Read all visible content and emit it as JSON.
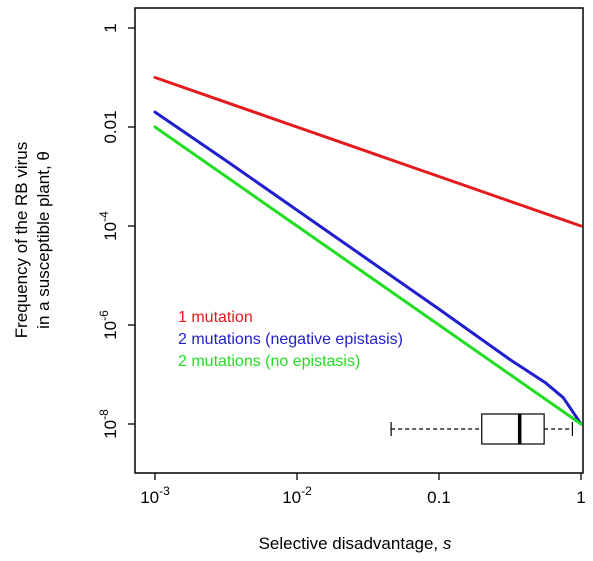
{
  "chart_data": {
    "type": "line",
    "xlabel": "Selective disadvantage, ",
    "xlabel_italic": "s",
    "ylabel_line1": "Frequency of the RB virus",
    "ylabel_line2": "in a susceptible plant, θ",
    "x_scale": "log",
    "y_scale": "log",
    "xlim": [
      0.001,
      1
    ],
    "ylim": [
      1e-09,
      1
    ],
    "x_ticks": [
      {
        "value": 0.001,
        "label_base": "10",
        "label_exp": "-3"
      },
      {
        "value": 0.01,
        "label_base": "10",
        "label_exp": "-2"
      },
      {
        "value": 0.1,
        "label_base": "0.1",
        "label_exp": ""
      },
      {
        "value": 1,
        "label_base": "1",
        "label_exp": ""
      }
    ],
    "y_ticks": [
      {
        "value": 1,
        "label_base": "1",
        "label_exp": ""
      },
      {
        "value": 0.01,
        "label_base": "0.01",
        "label_exp": ""
      },
      {
        "value": 0.0001,
        "label_base": "10",
        "label_exp": "-4"
      },
      {
        "value": 1e-06,
        "label_base": "10",
        "label_exp": "-6"
      },
      {
        "value": 1e-08,
        "label_base": "10",
        "label_exp": "-8"
      }
    ],
    "series": [
      {
        "name": "1 mutation",
        "color": "#e41a1c",
        "x": [
          0.001,
          0.01,
          0.1,
          1
        ],
        "y": [
          0.1,
          0.01,
          0.001,
          0.0001
        ]
      },
      {
        "name": "2 mutations (negative epistasis)",
        "color": "#1f1fd0",
        "x": [
          0.001,
          0.00316,
          0.01,
          0.0316,
          0.1,
          0.316,
          0.562,
          0.75,
          1
        ],
        "y": [
          0.02,
          0.0021,
          0.00021,
          2.1e-05,
          2.1e-06,
          2e-07,
          6.8e-08,
          3.4e-08,
          1e-08
        ]
      },
      {
        "name": "2 mutations (no epistasis)",
        "color": "#22dd22",
        "x": [
          0.001,
          0.01,
          0.1,
          1
        ],
        "y": [
          0.01,
          0.0001,
          1e-06,
          1e-08
        ]
      }
    ],
    "legend": {
      "position": "lower-left",
      "entries": [
        "1 mutation",
        "2 mutations (negative epistasis)",
        "2 mutations (no epistasis)"
      ]
    },
    "boxplot": {
      "orientation": "horizontal",
      "min": 0.046,
      "q1": 0.2,
      "median": 0.37,
      "q3": 0.55,
      "max": 0.87
    },
    "grid": false
  }
}
